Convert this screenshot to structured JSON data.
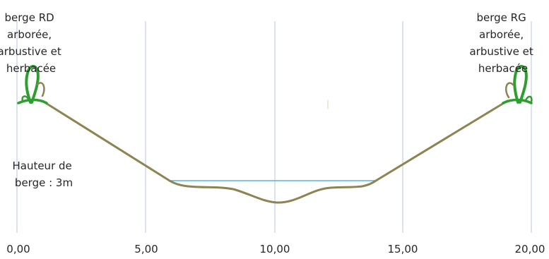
{
  "diagram": {
    "bank_left_lines": [
      "berge RD",
      "arborée,",
      "arbustive et",
      "herbacée"
    ],
    "bank_right_lines": [
      "berge RG",
      "arborée,",
      "arbustive et",
      "herbacée"
    ],
    "height_label_lines": [
      "Hauteur de",
      "berge : 3m"
    ],
    "x_ticks": [
      "0,00",
      "5,00",
      "10,00",
      "15,00",
      "20,00"
    ],
    "colors": {
      "grid": "#b8c4dc",
      "profile": "#8c8452",
      "water": "#5ab4dc",
      "vegetation": "#2e9e2e",
      "text": "#262626"
    },
    "icons": [
      "tree-icon-left",
      "tree-icon-right"
    ]
  }
}
